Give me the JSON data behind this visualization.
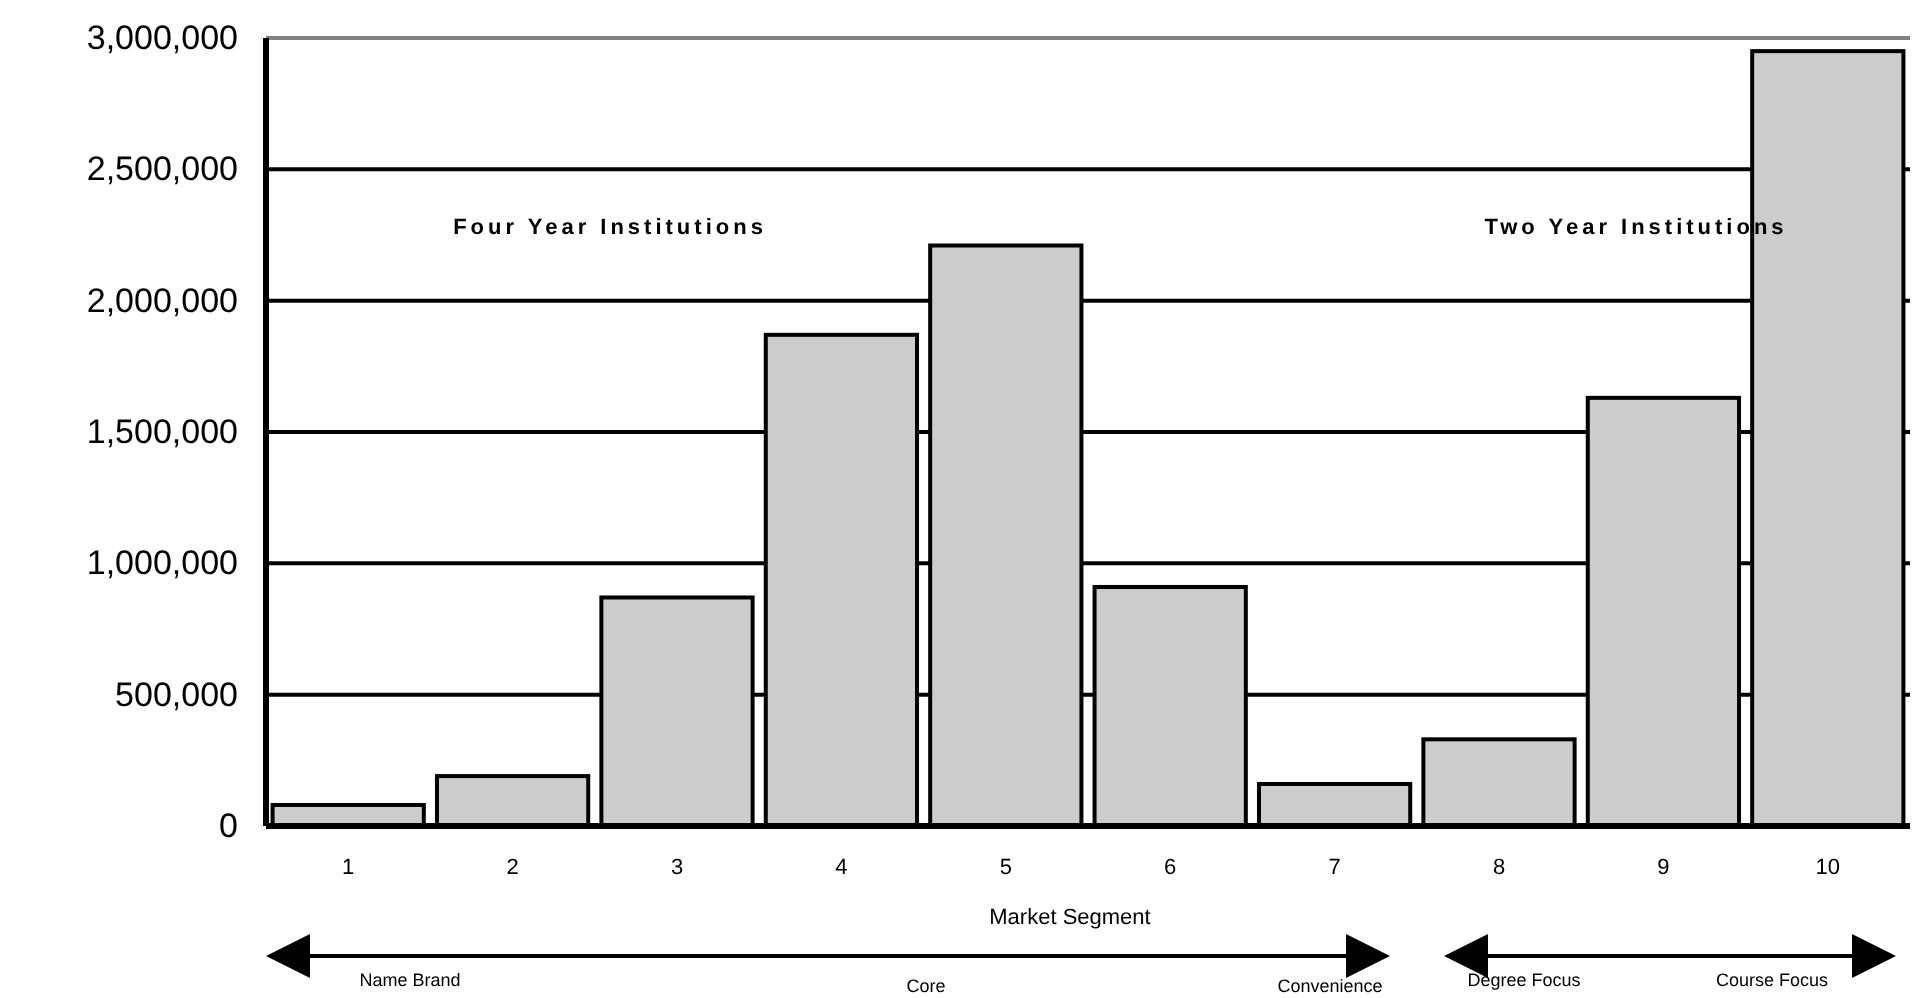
{
  "chart_data": {
    "type": "bar",
    "xlabel": "Market Segment",
    "categories": [
      "1",
      "2",
      "3",
      "4",
      "5",
      "6",
      "7",
      "8",
      "9",
      "10"
    ],
    "values": [
      80000,
      190000,
      870000,
      1870000,
      2210000,
      910000,
      160000,
      330000,
      1630000,
      2950000
    ],
    "color": "#cccccc",
    "ylim": [
      0,
      3000000
    ],
    "yticks": [
      {
        "value": 0,
        "label": "0"
      },
      {
        "value": 500000,
        "label": "500,000"
      },
      {
        "value": 1000000,
        "label": "1,000,000"
      },
      {
        "value": 1500000,
        "label": "1,500,000"
      },
      {
        "value": 2000000,
        "label": "2,000,000"
      },
      {
        "value": 2500000,
        "label": "2,500,000"
      },
      {
        "value": 3000000,
        "label": "3,000,000"
      }
    ],
    "grid": "y",
    "annotations": [
      "Four Year Institutions",
      "Two Year Institutions",
      "Name Brand",
      "Core",
      "Convenience",
      "Degree Focus",
      "Course Focus"
    ]
  }
}
